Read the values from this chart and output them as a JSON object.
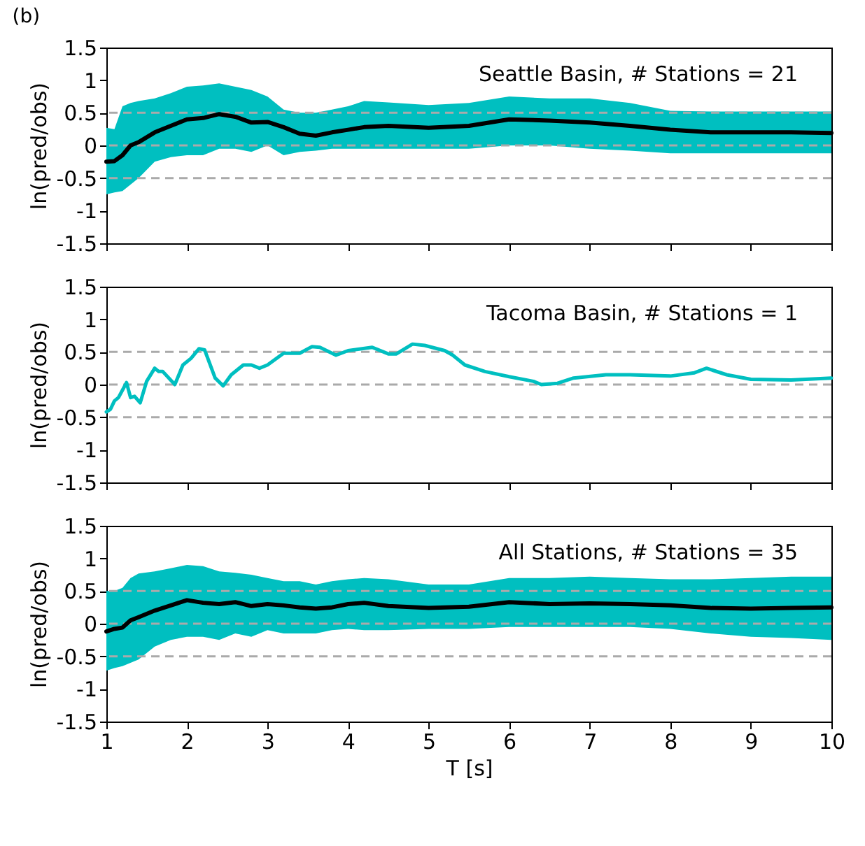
{
  "chart_data": [
    {
      "type": "line",
      "title": "(b)",
      "ylabel": "ln(pred/obs)",
      "annotations": [
        "Seattle Basin, # Stations = 21"
      ],
      "tick_labels": "y",
      "x": [
        1,
        1.1,
        1.2,
        1.3,
        1.4,
        1.6,
        1.8,
        2,
        2.2,
        2.4,
        2.6,
        2.8,
        3,
        3.2,
        3.4,
        3.6,
        3.8,
        4,
        4.2,
        4.5,
        5,
        5.5,
        6,
        6.5,
        7,
        7.5,
        8,
        8.5,
        9,
        9.5,
        10
      ],
      "series": [
        {
          "color": "#000000",
          "values": [
            -0.25,
            -0.24,
            -0.15,
            0.0,
            0.05,
            0.2,
            0.3,
            0.4,
            0.42,
            0.48,
            0.44,
            0.35,
            0.36,
            0.28,
            0.18,
            0.15,
            0.2,
            0.24,
            0.28,
            0.3,
            0.27,
            0.3,
            0.4,
            0.38,
            0.35,
            0.3,
            0.24,
            0.2,
            0.2,
            0.2,
            0.19
          ],
          "upper": [
            0.27,
            0.25,
            0.6,
            0.65,
            0.68,
            0.72,
            0.8,
            0.9,
            0.92,
            0.95,
            0.9,
            0.85,
            0.75,
            0.55,
            0.5,
            0.5,
            0.55,
            0.6,
            0.68,
            0.66,
            0.62,
            0.65,
            0.75,
            0.72,
            0.72,
            0.65,
            0.53,
            0.52,
            0.52,
            0.52,
            0.52
          ],
          "lower": [
            -0.75,
            -0.72,
            -0.7,
            -0.6,
            -0.5,
            -0.25,
            -0.18,
            -0.15,
            -0.15,
            -0.05,
            -0.05,
            -0.1,
            0.0,
            -0.15,
            -0.1,
            -0.08,
            -0.05,
            -0.05,
            -0.05,
            -0.05,
            -0.05,
            -0.05,
            0.0,
            0.0,
            -0.05,
            -0.08,
            -0.12,
            -0.12,
            -0.12,
            -0.12,
            -0.12
          ]
        }
      ],
      "xlim": [
        1,
        10
      ],
      "xticks": [
        1,
        2,
        3,
        4,
        5,
        6,
        7,
        8,
        9,
        10
      ],
      "ylim": [
        -1.5,
        1.5
      ],
      "yticks": [
        -1.5,
        -1,
        -0.5,
        0,
        0.5,
        1,
        1.5
      ],
      "ref_lines": [
        {
          "axis": "y",
          "value": -0.5,
          "color": "#aaaaaa",
          "line_style": "dashed"
        },
        {
          "axis": "y",
          "value": 0,
          "color": "#aaaaaa",
          "line_style": "dashed"
        },
        {
          "axis": "y",
          "value": 0.5,
          "color": "#aaaaaa",
          "line_style": "dashed"
        }
      ]
    },
    {
      "type": "line",
      "ylabel": "ln(pred/obs)",
      "annotations": [
        "Tacoma Basin, # Stations = 1"
      ],
      "tick_labels": "y",
      "x": [
        1.0,
        1.05,
        1.1,
        1.15,
        1.25,
        1.3,
        1.35,
        1.42,
        1.5,
        1.6,
        1.65,
        1.7,
        1.85,
        1.95,
        2.05,
        2.15,
        2.22,
        2.35,
        2.45,
        2.55,
        2.7,
        2.8,
        2.9,
        3.0,
        3.2,
        3.4,
        3.55,
        3.65,
        3.85,
        4.0,
        4.3,
        4.5,
        4.6,
        4.8,
        4.95,
        5.2,
        5.3,
        5.45,
        5.7,
        6.0,
        6.3,
        6.4,
        6.6,
        6.8,
        7.2,
        7.5,
        8.0,
        8.3,
        8.45,
        8.7,
        9.0,
        9.5,
        10
      ],
      "series": [
        {
          "color": "#00bfc0",
          "values": [
            -0.42,
            -0.38,
            -0.25,
            -0.2,
            0.03,
            -0.2,
            -0.18,
            -0.28,
            0.05,
            0.25,
            0.2,
            0.2,
            0.0,
            0.3,
            0.4,
            0.55,
            0.53,
            0.1,
            -0.02,
            0.15,
            0.3,
            0.3,
            0.25,
            0.3,
            0.48,
            0.48,
            0.58,
            0.57,
            0.45,
            0.52,
            0.57,
            0.47,
            0.47,
            0.62,
            0.6,
            0.52,
            0.45,
            0.3,
            0.2,
            0.12,
            0.05,
            0.0,
            0.02,
            0.1,
            0.15,
            0.15,
            0.13,
            0.18,
            0.25,
            0.15,
            0.08,
            0.07,
            0.1
          ]
        }
      ],
      "xlim": [
        1,
        10
      ],
      "xticks": [
        1,
        2,
        3,
        4,
        5,
        6,
        7,
        8,
        9,
        10
      ],
      "ylim": [
        -1.5,
        1.5
      ],
      "yticks": [
        -1.5,
        -1,
        -0.5,
        0,
        0.5,
        1,
        1.5
      ],
      "ref_lines": [
        {
          "axis": "y",
          "value": -0.5,
          "color": "#aaaaaa",
          "line_style": "dashed"
        },
        {
          "axis": "y",
          "value": 0,
          "color": "#aaaaaa",
          "line_style": "dashed"
        },
        {
          "axis": "y",
          "value": 0.5,
          "color": "#aaaaaa",
          "line_style": "dashed"
        }
      ]
    },
    {
      "type": "line",
      "xlabel": "T [s]",
      "ylabel": "ln(pred/obs)",
      "annotations": [
        "All Stations, # Stations = 35"
      ],
      "x": [
        1,
        1.1,
        1.2,
        1.3,
        1.4,
        1.6,
        1.8,
        2,
        2.2,
        2.4,
        2.6,
        2.8,
        3,
        3.2,
        3.4,
        3.6,
        3.8,
        4,
        4.2,
        4.5,
        5,
        5.5,
        6,
        6.5,
        7,
        7.5,
        8,
        8.5,
        9,
        9.5,
        10
      ],
      "series": [
        {
          "color": "#000000",
          "values": [
            -0.12,
            -0.08,
            -0.06,
            0.05,
            0.1,
            0.2,
            0.28,
            0.36,
            0.32,
            0.3,
            0.33,
            0.27,
            0.3,
            0.28,
            0.25,
            0.23,
            0.25,
            0.3,
            0.32,
            0.27,
            0.24,
            0.26,
            0.33,
            0.3,
            0.31,
            0.3,
            0.28,
            0.24,
            0.23,
            0.24,
            0.25
          ],
          "upper": [
            0.5,
            0.5,
            0.55,
            0.7,
            0.77,
            0.8,
            0.85,
            0.9,
            0.88,
            0.8,
            0.78,
            0.75,
            0.7,
            0.65,
            0.65,
            0.6,
            0.65,
            0.68,
            0.7,
            0.68,
            0.6,
            0.6,
            0.7,
            0.7,
            0.72,
            0.7,
            0.68,
            0.68,
            0.7,
            0.72,
            0.72
          ],
          "lower": [
            -0.72,
            -0.68,
            -0.65,
            -0.6,
            -0.55,
            -0.35,
            -0.25,
            -0.2,
            -0.2,
            -0.25,
            -0.15,
            -0.2,
            -0.1,
            -0.15,
            -0.15,
            -0.15,
            -0.1,
            -0.08,
            -0.1,
            -0.1,
            -0.08,
            -0.08,
            -0.05,
            -0.05,
            -0.05,
            -0.05,
            -0.08,
            -0.15,
            -0.2,
            -0.22,
            -0.25
          ]
        }
      ],
      "xlim": [
        1,
        10
      ],
      "xticks": [
        1,
        2,
        3,
        4,
        5,
        6,
        7,
        8,
        9,
        10
      ],
      "ylim": [
        -1.5,
        1.5
      ],
      "yticks": [
        -1.5,
        -1,
        -0.5,
        0,
        0.5,
        1,
        1.5
      ],
      "ref_lines": [
        {
          "axis": "y",
          "value": -0.5,
          "color": "#aaaaaa",
          "line_style": "dashed"
        },
        {
          "axis": "y",
          "value": 0,
          "color": "#aaaaaa",
          "line_style": "dashed"
        },
        {
          "axis": "y",
          "value": 0.5,
          "color": "#aaaaaa",
          "line_style": "dashed"
        }
      ]
    }
  ]
}
